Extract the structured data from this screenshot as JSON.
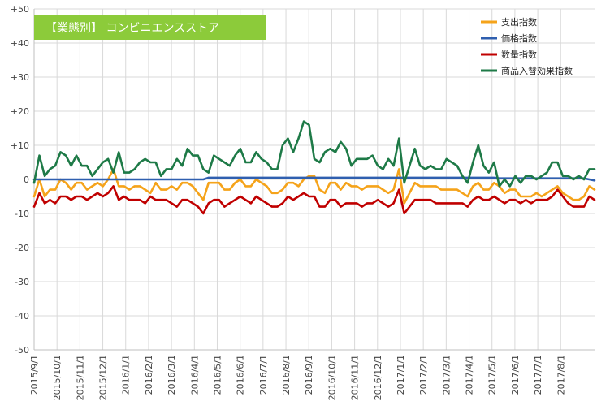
{
  "chart_data": {
    "type": "line",
    "title": "【業態別】 コンビニエンスストア",
    "xlabel": "",
    "ylabel": "",
    "ylim": [
      -50,
      50
    ],
    "yticks": [
      "+50",
      "+40",
      "+30",
      "+20",
      "+10",
      "0",
      "-10",
      "-20",
      "-30",
      "-40",
      "-50"
    ],
    "ytick_values": [
      50,
      40,
      30,
      20,
      10,
      0,
      -10,
      -20,
      -30,
      -40,
      -50
    ],
    "x_tick_labels": [
      "2015/9/1",
      "2015/10/1",
      "2015/11/1",
      "2015/12/1",
      "2016/1/1",
      "2016/2/1",
      "2016/3/1",
      "2016/4/1",
      "2016/5/1",
      "2016/6/1",
      "2016/7/1",
      "2016/8/1",
      "2016/9/1",
      "2016/10/1",
      "2016/11/1",
      "2016/12/1",
      "2017/1/1",
      "2017/2/1",
      "2017/3/1",
      "2017/4/1",
      "2017/5/1",
      "2017/6/1",
      "2017/7/1",
      "2017/8/1"
    ],
    "points_per_month": 4.33,
    "grid": true,
    "legend_position": "top-right",
    "series": [
      {
        "name": "支出指数",
        "color": "#F5A31A",
        "values": [
          -5,
          0,
          -5,
          -3,
          -3,
          0,
          -1,
          -3,
          -1,
          -1,
          -3,
          -2,
          -1,
          -2,
          0,
          3,
          -2,
          -2,
          -3,
          -2,
          -2,
          -3,
          -4,
          -1,
          -3,
          -3,
          -2,
          -3,
          -1,
          -1,
          -2,
          -4,
          -6,
          -1,
          -1,
          -1,
          -3,
          -3,
          -1,
          0,
          -2,
          -2,
          0,
          -1,
          -2,
          -4,
          -4,
          -3,
          -1,
          -1,
          -2,
          0,
          1,
          1,
          -3,
          -4,
          -1,
          -1,
          -3,
          -1,
          -2,
          -2,
          -3,
          -2,
          -2,
          -2,
          -3,
          -4,
          -3,
          3,
          -7,
          -4,
          -1,
          -2,
          -2,
          -2,
          -2,
          -3,
          -3,
          -3,
          -3,
          -4,
          -5,
          -2,
          -1,
          -3,
          -3,
          -1,
          -2,
          -4,
          -3,
          -3,
          -5,
          -5,
          -5,
          -4,
          -5,
          -4,
          -3,
          -2,
          -4,
          -5,
          -6,
          -6,
          -5,
          -2,
          -3
        ]
      },
      {
        "name": "価格指数",
        "color": "#2F5FAF",
        "values": [
          0,
          0,
          0,
          0,
          0,
          0,
          0,
          0,
          0,
          0,
          0,
          0,
          0,
          0,
          0,
          0,
          0,
          0,
          0,
          0,
          0,
          0,
          0,
          0,
          0,
          0,
          0,
          0,
          0,
          0,
          0,
          0,
          0,
          0.5,
          0.5,
          0.5,
          0.5,
          0.5,
          0.5,
          0.5,
          0.5,
          0.5,
          0.5,
          0.5,
          0.5,
          0.5,
          0.5,
          0.5,
          0.5,
          0.5,
          0.5,
          0.5,
          0.5,
          0.5,
          0.5,
          0.5,
          0.5,
          0.5,
          0.5,
          0.5,
          0.5,
          0.5,
          0.5,
          0.5,
          0.5,
          0.5,
          0.5,
          0.5,
          0.5,
          0.5,
          0.5,
          0.5,
          0.5,
          0.5,
          0.5,
          0.5,
          0.5,
          0.5,
          0.5,
          0.5,
          0.5,
          0.5,
          0.5,
          0.5,
          0.5,
          0.5,
          0.5,
          0.5,
          0.3,
          0.3,
          0.3,
          0.3,
          0.3,
          0.3,
          0.3,
          0.3,
          0.3,
          0.3,
          0.3,
          0.3,
          0.3,
          0.3,
          0.3,
          0.3,
          0.3,
          0,
          -0.3
        ]
      },
      {
        "name": "数量指数",
        "color": "#C00000",
        "values": [
          -8,
          -4,
          -7,
          -6,
          -7,
          -5,
          -5,
          -6,
          -5,
          -5,
          -6,
          -5,
          -4,
          -5,
          -4,
          -2,
          -6,
          -5,
          -6,
          -6,
          -6,
          -7,
          -5,
          -6,
          -6,
          -6,
          -7,
          -8,
          -6,
          -6,
          -7,
          -8,
          -10,
          -7,
          -6,
          -6,
          -8,
          -7,
          -6,
          -5,
          -6,
          -7,
          -5,
          -6,
          -7,
          -8,
          -8,
          -7,
          -5,
          -6,
          -5,
          -4,
          -5,
          -5,
          -8,
          -8,
          -6,
          -6,
          -8,
          -7,
          -7,
          -7,
          -8,
          -7,
          -7,
          -6,
          -7,
          -8,
          -7,
          -3,
          -10,
          -8,
          -6,
          -6,
          -6,
          -6,
          -7,
          -7,
          -7,
          -7,
          -7,
          -7,
          -8,
          -6,
          -5,
          -6,
          -6,
          -5,
          -6,
          -7,
          -6,
          -6,
          -7,
          -6,
          -7,
          -6,
          -6,
          -6,
          -5,
          -3,
          -5,
          -7,
          -8,
          -8,
          -8,
          -5,
          -6
        ]
      },
      {
        "name": "商品入替効果指数",
        "color": "#1E7A47",
        "values": [
          -1,
          7,
          1,
          3,
          4,
          8,
          7,
          4,
          7,
          4,
          4,
          1,
          3,
          5,
          6,
          2,
          8,
          2,
          2,
          3,
          5,
          6,
          5,
          5,
          1,
          3,
          3,
          6,
          4,
          9,
          7,
          7,
          3,
          2,
          7,
          6,
          5,
          4,
          7,
          9,
          5,
          5,
          8,
          6,
          5,
          3,
          3,
          10,
          12,
          8,
          12,
          17,
          16,
          6,
          5,
          8,
          9,
          8,
          11,
          9,
          4,
          6,
          6,
          6,
          7,
          4,
          3,
          6,
          4,
          12,
          -1,
          4,
          9,
          4,
          3,
          4,
          3,
          3,
          6,
          5,
          4,
          1,
          -1,
          5,
          10,
          4,
          2,
          5,
          -2,
          0,
          -2,
          1,
          -1,
          1,
          1,
          0,
          1,
          2,
          5,
          5,
          1,
          1,
          0,
          1,
          0,
          3,
          3
        ]
      }
    ]
  }
}
